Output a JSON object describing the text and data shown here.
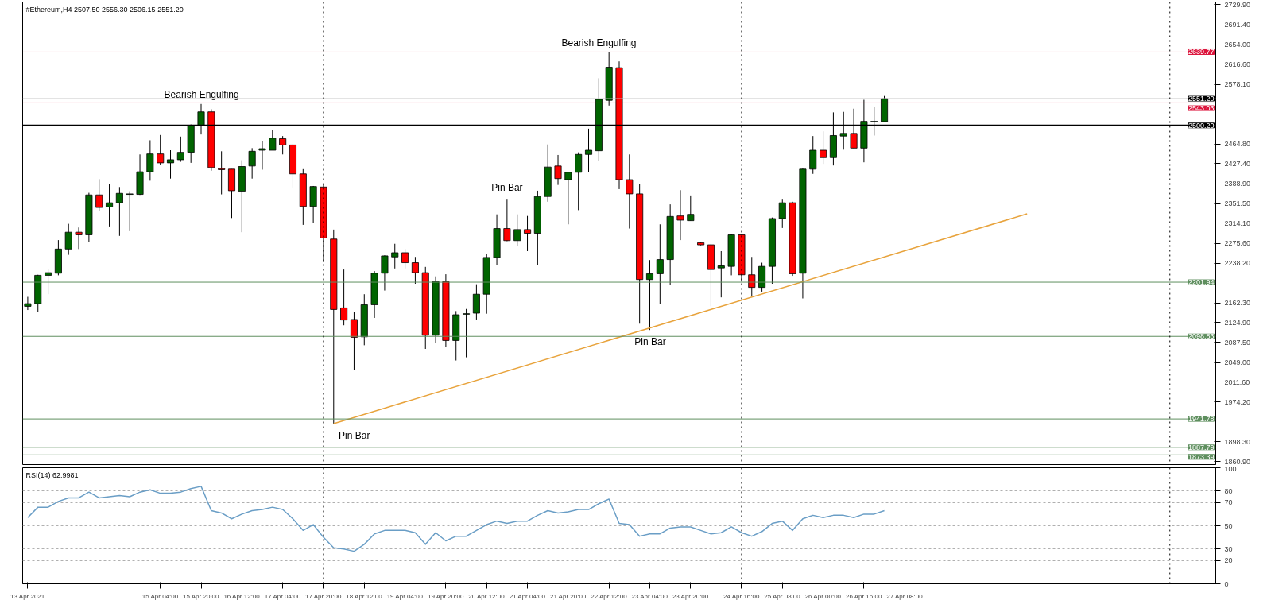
{
  "chart_data": [
    {
      "type": "candlestick",
      "title": "#Ethereum,H4  2507.50 2556.30 2506.15 2551.20",
      "tick_labels": "y",
      "grid": false,
      "x": [
        "2021-04-13T00:00",
        "2021-04-13T04:00",
        "2021-04-13T08:00",
        "2021-04-13T12:00",
        "2021-04-13T16:00",
        "2021-04-13T20:00",
        "2021-04-14T00:00",
        "2021-04-14T04:00",
        "2021-04-14T08:00",
        "2021-04-14T12:00",
        "2021-04-14T16:00",
        "2021-04-14T20:00",
        "2021-04-15T00:00",
        "2021-04-15T04:00",
        "2021-04-15T08:00",
        "2021-04-15T12:00",
        "2021-04-15T16:00",
        "2021-04-15T20:00",
        "2021-04-16T00:00",
        "2021-04-16T04:00",
        "2021-04-16T08:00",
        "2021-04-16T12:00",
        "2021-04-16T16:00",
        "2021-04-16T20:00",
        "2021-04-17T00:00",
        "2021-04-17T04:00",
        "2021-04-17T08:00",
        "2021-04-17T12:00",
        "2021-04-17T16:00",
        "2021-04-17T20:00",
        "2021-04-18T00:00",
        "2021-04-18T04:00",
        "2021-04-18T08:00",
        "2021-04-18T12:00",
        "2021-04-18T16:00",
        "2021-04-18T20:00",
        "2021-04-19T00:00",
        "2021-04-19T04:00",
        "2021-04-19T08:00",
        "2021-04-19T12:00",
        "2021-04-19T16:00",
        "2021-04-19T20:00",
        "2021-04-20T00:00",
        "2021-04-20T04:00",
        "2021-04-20T08:00",
        "2021-04-20T12:00",
        "2021-04-20T16:00",
        "2021-04-20T20:00",
        "2021-04-21T00:00",
        "2021-04-21T04:00",
        "2021-04-21T08:00",
        "2021-04-21T12:00",
        "2021-04-21T16:00",
        "2021-04-21T20:00",
        "2021-04-22T00:00",
        "2021-04-22T04:00",
        "2021-04-22T08:00",
        "2021-04-22T12:00",
        "2021-04-22T16:00",
        "2021-04-22T20:00",
        "2021-04-23T00:00",
        "2021-04-23T04:00",
        "2021-04-23T08:00",
        "2021-04-23T12:00",
        "2021-04-23T16:00",
        "2021-04-23T20:00",
        "2021-04-24T00:00",
        "2021-04-24T04:00",
        "2021-04-24T08:00",
        "2021-04-24T12:00",
        "2021-04-24T16:00",
        "2021-04-24T20:00",
        "2021-04-25T00:00",
        "2021-04-25T04:00",
        "2021-04-25T08:00",
        "2021-04-25T12:00",
        "2021-04-25T16:00",
        "2021-04-25T20:00",
        "2021-04-26T00:00",
        "2021-04-26T04:00",
        "2021-04-26T08:00",
        "2021-04-26T12:00",
        "2021-04-26T16:00",
        "2021-04-26T20:00",
        "2021-04-27T00:00"
      ],
      "ohlc": [
        [
          2156,
          2174,
          2149,
          2161
        ],
        [
          2161,
          2216,
          2145,
          2215
        ],
        [
          2215,
          2226,
          2179,
          2220
        ],
        [
          2219,
          2282,
          2215,
          2265
        ],
        [
          2265,
          2313,
          2254,
          2297
        ],
        [
          2297,
          2306,
          2265,
          2292
        ],
        [
          2292,
          2372,
          2279,
          2368
        ],
        [
          2368,
          2398,
          2337,
          2344
        ],
        [
          2345,
          2388,
          2308,
          2353
        ],
        [
          2353,
          2383,
          2290,
          2371
        ],
        [
          2369,
          2375,
          2299,
          2370
        ],
        [
          2369,
          2445,
          2368,
          2412
        ],
        [
          2412,
          2472,
          2395,
          2446
        ],
        [
          2446,
          2482,
          2425,
          2429
        ],
        [
          2429,
          2453,
          2399,
          2435
        ],
        [
          2435,
          2479,
          2431,
          2449
        ],
        [
          2449,
          2502,
          2429,
          2500
        ],
        [
          2500,
          2541,
          2483,
          2526
        ],
        [
          2526,
          2531,
          2414,
          2420
        ],
        [
          2418,
          2451,
          2369,
          2416
        ],
        [
          2417,
          2417,
          2324,
          2376
        ],
        [
          2375,
          2434,
          2297,
          2422
        ],
        [
          2423,
          2457,
          2399,
          2451
        ],
        [
          2453,
          2471,
          2416,
          2456
        ],
        [
          2453,
          2492,
          2453,
          2476
        ],
        [
          2475,
          2480,
          2445,
          2463
        ],
        [
          2463,
          2465,
          2382,
          2408
        ],
        [
          2408,
          2417,
          2311,
          2346
        ],
        [
          2346,
          2385,
          2314,
          2384
        ],
        [
          2383,
          2389,
          2240,
          2286
        ],
        [
          2284,
          2302,
          1932,
          2150
        ],
        [
          2153,
          2226,
          2120,
          2130
        ],
        [
          2131,
          2146,
          2035,
          2097
        ],
        [
          2098,
          2179,
          2082,
          2159
        ],
        [
          2159,
          2223,
          2134,
          2219
        ],
        [
          2219,
          2253,
          2186,
          2252
        ],
        [
          2250,
          2275,
          2228,
          2258
        ],
        [
          2258,
          2265,
          2228,
          2239
        ],
        [
          2239,
          2250,
          2199,
          2220
        ],
        [
          2220,
          2231,
          2075,
          2101
        ],
        [
          2101,
          2213,
          2086,
          2203
        ],
        [
          2203,
          2217,
          2078,
          2091
        ],
        [
          2091,
          2147,
          2053,
          2140
        ],
        [
          2141,
          2151,
          2059,
          2142
        ],
        [
          2143,
          2198,
          2131,
          2179
        ],
        [
          2179,
          2256,
          2142,
          2249
        ],
        [
          2249,
          2331,
          2235,
          2304
        ],
        [
          2304,
          2359,
          2280,
          2281
        ],
        [
          2281,
          2331,
          2270,
          2302
        ],
        [
          2302,
          2328,
          2261,
          2295
        ],
        [
          2295,
          2376,
          2234,
          2365
        ],
        [
          2365,
          2464,
          2355,
          2421
        ],
        [
          2423,
          2444,
          2387,
          2399
        ],
        [
          2397,
          2412,
          2312,
          2411
        ],
        [
          2411,
          2449,
          2339,
          2445
        ],
        [
          2445,
          2494,
          2412,
          2453
        ],
        [
          2452,
          2590,
          2433,
          2550
        ],
        [
          2548,
          2640,
          2538,
          2611
        ],
        [
          2610,
          2622,
          2379,
          2397
        ],
        [
          2397,
          2445,
          2304,
          2370
        ],
        [
          2370,
          2388,
          2123,
          2207
        ],
        [
          2207,
          2244,
          2111,
          2218
        ],
        [
          2218,
          2312,
          2161,
          2245
        ],
        [
          2245,
          2350,
          2197,
          2327
        ],
        [
          2328,
          2377,
          2282,
          2320
        ],
        [
          2319,
          2367,
          2319,
          2331
        ],
        [
          2277,
          2279,
          2272,
          2273
        ],
        [
          2273,
          2275,
          2156,
          2226
        ],
        [
          2229,
          2261,
          2173,
          2233
        ],
        [
          2232,
          2293,
          2215,
          2292
        ],
        [
          2292,
          2293,
          2203,
          2216
        ],
        [
          2216,
          2250,
          2174,
          2192
        ],
        [
          2192,
          2239,
          2184,
          2232
        ],
        [
          2232,
          2325,
          2199,
          2323
        ],
        [
          2323,
          2359,
          2305,
          2353
        ],
        [
          2353,
          2355,
          2214,
          2218
        ],
        [
          2219,
          2418,
          2171,
          2417
        ],
        [
          2417,
          2480,
          2408,
          2453
        ],
        [
          2453,
          2489,
          2427,
          2439
        ],
        [
          2439,
          2525,
          2424,
          2481
        ],
        [
          2480,
          2526,
          2454,
          2485
        ],
        [
          2485,
          2532,
          2457,
          2457
        ],
        [
          2457,
          2549,
          2430,
          2508
        ],
        [
          2507,
          2535,
          2481,
          2508
        ],
        [
          2507.5,
          2556.3,
          2506.2,
          2551.2
        ]
      ],
      "colors": [
        "#006400",
        "#006400",
        "#006400",
        "#006400",
        "#006400",
        "#ff0000",
        "#006400",
        "#ff0000",
        "#006400",
        "#006400",
        "#006400",
        "#006400",
        "#006400",
        "#ff0000",
        "#006400",
        "#006400",
        "#006400",
        "#006400",
        "#ff0000",
        "#ff0000",
        "#ff0000",
        "#006400",
        "#006400",
        "#006400",
        "#006400",
        "#ff0000",
        "#ff0000",
        "#ff0000",
        "#006400",
        "#ff0000",
        "#ff0000",
        "#ff0000",
        "#ff0000",
        "#006400",
        "#006400",
        "#006400",
        "#006400",
        "#ff0000",
        "#ff0000",
        "#ff0000",
        "#006400",
        "#ff0000",
        "#006400",
        "#006400",
        "#006400",
        "#006400",
        "#006400",
        "#ff0000",
        "#006400",
        "#ff0000",
        "#006400",
        "#006400",
        "#ff0000",
        "#006400",
        "#006400",
        "#006400",
        "#006400",
        "#006400",
        "#ff0000",
        "#ff0000",
        "#ff0000",
        "#006400",
        "#006400",
        "#006400",
        "#ff0000",
        "#006400",
        "#ff0000",
        "#ff0000",
        "#006400",
        "#006400",
        "#ff0000",
        "#ff0000",
        "#006400",
        "#006400",
        "#006400",
        "#ff0000",
        "#006400",
        "#006400",
        "#ff0000",
        "#006400",
        "#006400",
        "#ff0000",
        "#006400",
        "#006400",
        "#006400"
      ],
      "series": [
        {
          "type": "line",
          "color": "#e8a33c",
          "x": [
            "2021-04-18T00:00",
            "2021-04-29T08:00"
          ],
          "values": [
            1933,
            2332
          ]
        }
      ],
      "xlim": [
        "2021-04-12T22:00",
        "2021-05-02T10:00"
      ],
      "ylim": [
        1855,
        2735
      ],
      "yticks": [
        {
          "value": 2729.9,
          "label": "2729.90"
        },
        {
          "value": 2691.4,
          "label": "2691.40"
        },
        {
          "value": 2654.0,
          "label": "2654.00"
        },
        {
          "value": 2616.6,
          "label": "2616.60"
        },
        {
          "value": 2578.1,
          "label": "2578.10"
        },
        {
          "value": 2464.8,
          "label": "2464.80"
        },
        {
          "value": 2427.4,
          "label": "2427.40"
        },
        {
          "value": 2388.9,
          "label": "2388.90"
        },
        {
          "value": 2351.5,
          "label": "2351.50"
        },
        {
          "value": 2314.1,
          "label": "2314.10"
        },
        {
          "value": 2275.6,
          "label": "2275.60"
        },
        {
          "value": 2238.2,
          "label": "2238.20"
        },
        {
          "value": 2162.3,
          "label": "2162.30"
        },
        {
          "value": 2124.9,
          "label": "2124.90"
        },
        {
          "value": 2087.5,
          "label": "2087.50"
        },
        {
          "value": 2049.0,
          "label": "2049.00"
        },
        {
          "value": 2011.6,
          "label": "2011.60"
        },
        {
          "value": 1974.2,
          "label": "1974.20"
        },
        {
          "value": 1898.3,
          "label": "1898.30"
        },
        {
          "value": 1860.9,
          "label": "1860.90"
        }
      ],
      "ref_lines": [
        {
          "axis": "y",
          "value": 2639.77,
          "label": "2639.77",
          "color": "#dc143c"
        },
        {
          "axis": "y",
          "value": 2551.2,
          "label": "2551.20",
          "color": "#c0c0c0"
        },
        {
          "axis": "y",
          "value": 2543.03,
          "label": "2543.03",
          "color": "#dc143c"
        },
        {
          "axis": "y",
          "value": 2500.2,
          "label": "2500.20",
          "color": "#000000"
        },
        {
          "axis": "y",
          "value": 2201.94,
          "label": "2201.94",
          "color": "#5f8f5f"
        },
        {
          "axis": "y",
          "value": 2098.83,
          "label": "2098.83",
          "color": "#5f8f5f"
        },
        {
          "axis": "y",
          "value": 1941.78,
          "label": "1941.78",
          "color": "#5f8f5f"
        },
        {
          "axis": "y",
          "value": 1887.79,
          "label": "1887.79",
          "color": "#5f8f5f"
        },
        {
          "axis": "y",
          "value": 1873.39,
          "label": "1873.39",
          "color": "#5f8f5f"
        },
        {
          "axis": "x",
          "value": "2021-04-17T20:00",
          "color": "#000000",
          "line_style": "dotted"
        },
        {
          "axis": "x",
          "value": "2021-04-24T16:00",
          "color": "#000000",
          "line_style": "dotted"
        },
        {
          "axis": "x",
          "value": "2021-05-01T16:00",
          "color": "#000000",
          "line_style": "dotted"
        }
      ],
      "annotations": [
        "Bearish Engulfing",
        "Pin Bar",
        "Bearish Engulfing",
        "Pin Bar",
        "Pin Bar"
      ]
    },
    {
      "type": "line",
      "title": "RSI(14) 62.9981",
      "grid": "y",
      "marker": "none",
      "x": [
        "2021-04-13T00:00",
        "2021-04-13T04:00",
        "2021-04-13T08:00",
        "2021-04-13T12:00",
        "2021-04-13T16:00",
        "2021-04-13T20:00",
        "2021-04-14T00:00",
        "2021-04-14T04:00",
        "2021-04-14T08:00",
        "2021-04-14T12:00",
        "2021-04-14T16:00",
        "2021-04-14T20:00",
        "2021-04-15T00:00",
        "2021-04-15T04:00",
        "2021-04-15T08:00",
        "2021-04-15T12:00",
        "2021-04-15T16:00",
        "2021-04-15T20:00",
        "2021-04-16T00:00",
        "2021-04-16T04:00",
        "2021-04-16T08:00",
        "2021-04-16T12:00",
        "2021-04-16T16:00",
        "2021-04-16T20:00",
        "2021-04-17T00:00",
        "2021-04-17T04:00",
        "2021-04-17T08:00",
        "2021-04-17T12:00",
        "2021-04-17T16:00",
        "2021-04-17T20:00",
        "2021-04-18T00:00",
        "2021-04-18T04:00",
        "2021-04-18T08:00",
        "2021-04-18T12:00",
        "2021-04-18T16:00",
        "2021-04-18T20:00",
        "2021-04-19T00:00",
        "2021-04-19T04:00",
        "2021-04-19T08:00",
        "2021-04-19T12:00",
        "2021-04-19T16:00",
        "2021-04-19T20:00",
        "2021-04-20T00:00",
        "2021-04-20T04:00",
        "2021-04-20T08:00",
        "2021-04-20T12:00",
        "2021-04-20T16:00",
        "2021-04-20T20:00",
        "2021-04-21T00:00",
        "2021-04-21T04:00",
        "2021-04-21T08:00",
        "2021-04-21T12:00",
        "2021-04-21T16:00",
        "2021-04-21T20:00",
        "2021-04-22T00:00",
        "2021-04-22T04:00",
        "2021-04-22T08:00",
        "2021-04-22T12:00",
        "2021-04-22T16:00",
        "2021-04-22T20:00",
        "2021-04-23T00:00",
        "2021-04-23T04:00",
        "2021-04-23T08:00",
        "2021-04-23T12:00",
        "2021-04-23T16:00",
        "2021-04-23T20:00",
        "2021-04-24T00:00",
        "2021-04-24T04:00",
        "2021-04-24T08:00",
        "2021-04-24T12:00",
        "2021-04-24T16:00",
        "2021-04-24T20:00",
        "2021-04-25T00:00",
        "2021-04-25T04:00",
        "2021-04-25T08:00",
        "2021-04-25T12:00",
        "2021-04-25T16:00",
        "2021-04-25T20:00",
        "2021-04-26T00:00",
        "2021-04-26T04:00",
        "2021-04-26T08:00",
        "2021-04-26T12:00",
        "2021-04-26T16:00",
        "2021-04-26T20:00",
        "2021-04-27T00:00"
      ],
      "series": [
        {
          "color": "#6a9ec6",
          "values": [
            57,
            66,
            66,
            71,
            74,
            74,
            79,
            74,
            75,
            76,
            75,
            79,
            81,
            78,
            78,
            79,
            82,
            84,
            63,
            61,
            56,
            60,
            63,
            64,
            66,
            64,
            56,
            46,
            51,
            40,
            31,
            30,
            28,
            34,
            43,
            46,
            46,
            46,
            44,
            34,
            44,
            37,
            41,
            41,
            46,
            51,
            54,
            52,
            54,
            54,
            59,
            63,
            61,
            62,
            64,
            64,
            69,
            73,
            52,
            51,
            41,
            43,
            43,
            48,
            49,
            49,
            46,
            43,
            44,
            49,
            44,
            41,
            45,
            52,
            54,
            46,
            56,
            59,
            57,
            59,
            59,
            57,
            60,
            60,
            63
          ]
        }
      ],
      "xlim": [
        "2021-04-12T22:00",
        "2021-05-02T10:00"
      ],
      "ylim": [
        0,
        100
      ],
      "yticks": [
        0,
        20,
        30,
        50,
        70,
        80,
        100
      ],
      "xticks": [
        {
          "value": "2021-04-13T00:00",
          "label": "13 Apr 2021"
        },
        {
          "value": "2021-04-15T04:00",
          "label": "15 Apr 04:00"
        },
        {
          "value": "2021-04-15T20:00",
          "label": "15 Apr 20:00"
        },
        {
          "value": "2021-04-16T12:00",
          "label": "16 Apr 12:00"
        },
        {
          "value": "2021-04-17T04:00",
          "label": "17 Apr 04:00"
        },
        {
          "value": "2021-04-17T20:00",
          "label": "17 Apr 20:00"
        },
        {
          "value": "2021-04-18T12:00",
          "label": "18 Apr 12:00"
        },
        {
          "value": "2021-04-19T04:00",
          "label": "19 Apr 04:00"
        },
        {
          "value": "2021-04-19T20:00",
          "label": "19 Apr 20:00"
        },
        {
          "value": "2021-04-20T12:00",
          "label": "20 Apr 12:00"
        },
        {
          "value": "2021-04-21T04:00",
          "label": "21 Apr 04:00"
        },
        {
          "value": "2021-04-21T20:00",
          "label": "21 Apr 20:00"
        },
        {
          "value": "2021-04-22T12:00",
          "label": "22 Apr 12:00"
        },
        {
          "value": "2021-04-23T04:00",
          "label": "23 Apr 04:00"
        },
        {
          "value": "2021-04-23T20:00",
          "label": "23 Apr 20:00"
        },
        {
          "value": "2021-04-24T16:00",
          "label": "24 Apr 16:00"
        },
        {
          "value": "2021-04-25T08:00",
          "label": "25 Apr 08:00"
        },
        {
          "value": "2021-04-26T00:00",
          "label": "26 Apr 00:00"
        },
        {
          "value": "2021-04-26T16:00",
          "label": "26 Apr 16:00"
        },
        {
          "value": "2021-04-27T08:00",
          "label": "27 Apr 08:00"
        }
      ],
      "ref_lines": [
        {
          "axis": "x",
          "value": "2021-04-17T20:00",
          "color": "#000000",
          "line_style": "dotted"
        },
        {
          "axis": "x",
          "value": "2021-04-24T16:00",
          "color": "#000000",
          "line_style": "dotted"
        },
        {
          "axis": "x",
          "value": "2021-05-01T16:00",
          "color": "#000000",
          "line_style": "dotted"
        }
      ]
    }
  ]
}
